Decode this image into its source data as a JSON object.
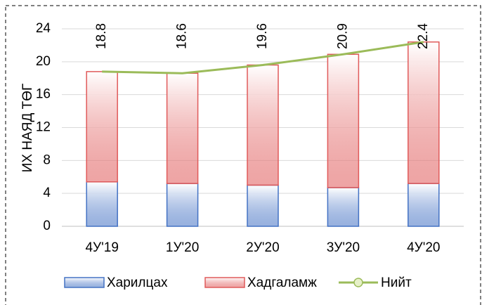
{
  "chart_data": {
    "type": "bar",
    "y_label": "ИХ НАЯД ТӨГ",
    "categories": [
      "4У'19",
      "1У'20",
      "2У'20",
      "3У'20",
      "4У'20"
    ],
    "series": [
      {
        "name": "Харилцах",
        "type": "bar",
        "color": "#4472c4",
        "values": [
          5.4,
          5.2,
          5.0,
          4.7,
          5.2
        ]
      },
      {
        "name": "Хадгаламж",
        "type": "bar",
        "color": "#e05a5a",
        "values": [
          13.4,
          13.4,
          14.6,
          16.2,
          17.2
        ]
      },
      {
        "name": "Нийт",
        "type": "line",
        "color": "#9bbb59",
        "values": [
          18.8,
          18.6,
          19.6,
          20.9,
          22.4
        ]
      }
    ],
    "ylim": [
      0,
      24
    ],
    "yticks": [
      0,
      4,
      8,
      12,
      16,
      20,
      24
    ],
    "grid": true,
    "stacked": true,
    "legend": "bottom"
  }
}
